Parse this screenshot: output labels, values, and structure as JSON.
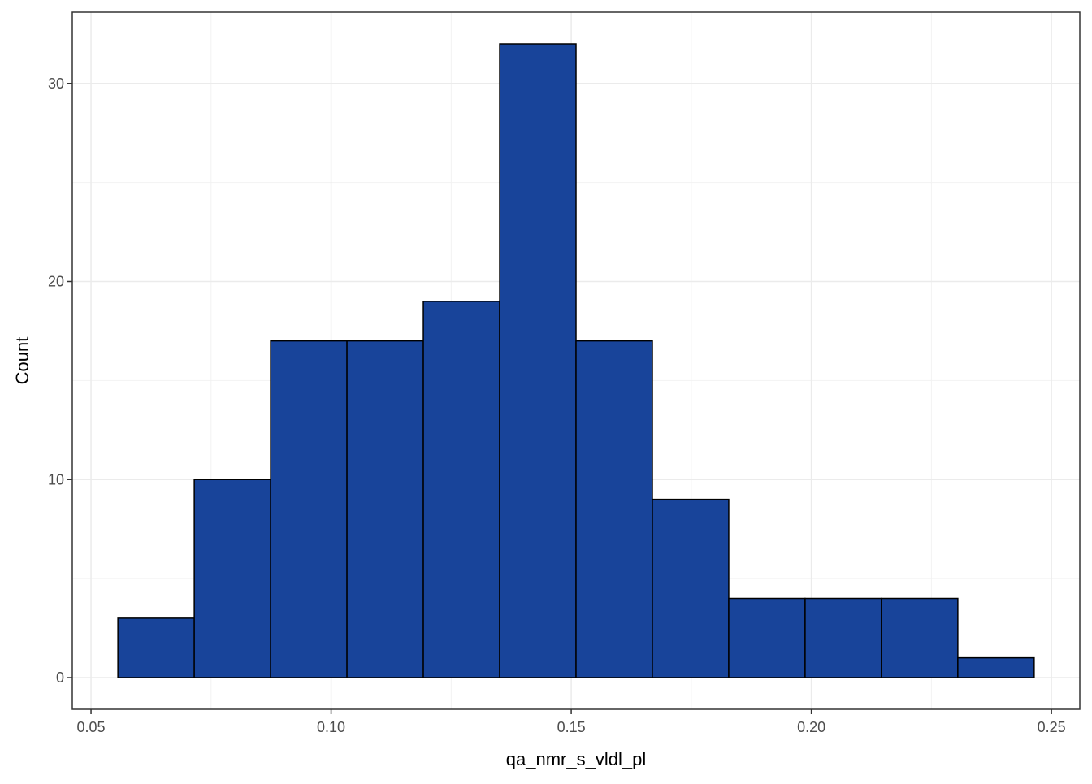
{
  "chart_data": {
    "type": "histogram",
    "x_label": "qa_nmr_s_vldl_pl",
    "y_label": "Count",
    "bins": [
      0.0556,
      0.0715,
      0.0874,
      0.1033,
      0.1192,
      0.1351,
      0.151,
      0.1669,
      0.1828,
      0.1987,
      0.2146,
      0.2305,
      0.2464
    ],
    "values": [
      3,
      10,
      17,
      17,
      19,
      32,
      17,
      9,
      4,
      4,
      4,
      1
    ],
    "color": "#18449a",
    "edgecolor": "#000000",
    "xlim": [
      0.0461,
      0.2559
    ],
    "ylim": [
      -1.6,
      33.6
    ],
    "xticks": [
      {
        "value": 0.05,
        "label": "0.05"
      },
      {
        "value": 0.1,
        "label": "0.10"
      },
      0.15,
      {
        "value": 0.2,
        "label": "0.20"
      },
      0.25
    ],
    "yticks": [
      0,
      10,
      20,
      30
    ],
    "grid": true
  }
}
